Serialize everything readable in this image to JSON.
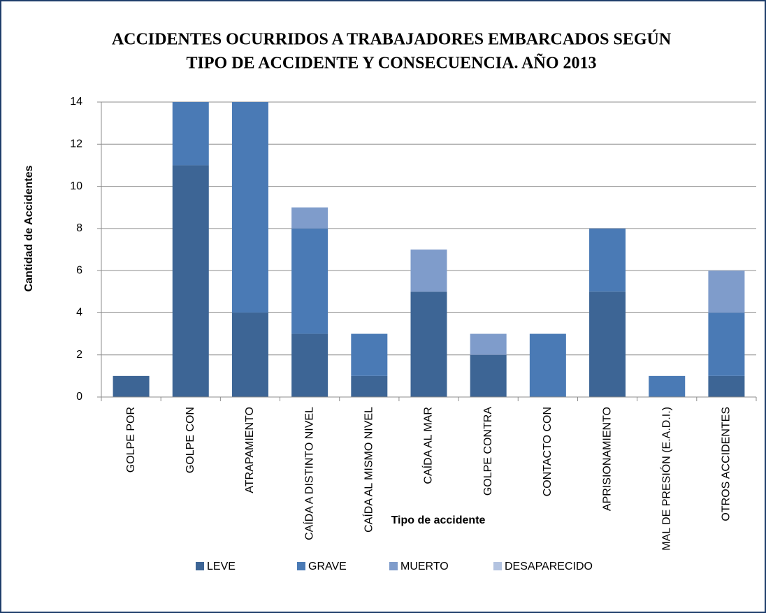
{
  "chart_data": {
    "type": "stacked_bar",
    "title": [
      "ACCIDENTES OCURRIDOS A TRABAJADORES EMBARCADOS SEGÚN",
      "TIPO DE ACCIDENTE Y CONSECUENCIA. AÑO 2013"
    ],
    "x_label": "Tipo de accidente",
    "y_label": "Cantidad de Accidentes",
    "categories": [
      "GOLPE POR",
      "GOLPE CON",
      "ATRAPAMIENTO",
      "CAÍDA A DISTINTO NIVEL",
      "CAÍDA AL MISMO NIVEL",
      "CAÍDA AL MAR",
      "GOLPE CONTRA",
      "CONTACTO CON",
      "APRISIONAMIENTO",
      "MAL DE PRESIÓN (E.A.D.I.)",
      "OTROS ACCIDENTES"
    ],
    "series": [
      {
        "name": "LEVE",
        "color": "#3d6595",
        "values": [
          1,
          11,
          4,
          3,
          1,
          5,
          2,
          0,
          5,
          0,
          1
        ]
      },
      {
        "name": "GRAVE",
        "color": "#4a7ab5",
        "values": [
          0,
          3,
          10,
          5,
          2,
          0,
          0,
          3,
          3,
          1,
          3
        ]
      },
      {
        "name": "MUERTO",
        "color": "#7f9ccb",
        "values": [
          0,
          0,
          0,
          1,
          0,
          2,
          1,
          0,
          0,
          0,
          2
        ]
      },
      {
        "name": "DESAPARECIDO",
        "color": "#b3c3e0",
        "values": [
          0,
          0,
          0,
          0,
          0,
          0,
          0,
          0,
          0,
          0,
          0
        ]
      }
    ],
    "ylim": [
      0,
      14
    ],
    "yticks": [
      0,
      2,
      4,
      6,
      8,
      10,
      12,
      14
    ],
    "grid": true,
    "legend": "bottom"
  }
}
